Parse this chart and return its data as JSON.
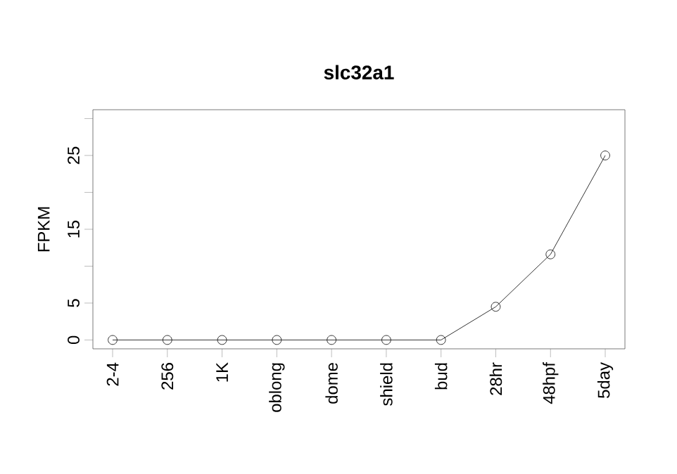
{
  "chart_data": {
    "type": "line",
    "title": "slc32a1",
    "ylabel": "FPKM",
    "categories": [
      "2-4",
      "256",
      "1K",
      "oblong",
      "dome",
      "shield",
      "bud",
      "28hr",
      "48hpf",
      "5day"
    ],
    "series": [
      {
        "color": "#000000",
        "values": [
          0,
          0,
          0,
          0,
          0,
          0,
          0,
          4.5,
          11.6,
          25.0
        ]
      }
    ],
    "ylim": [
      -1.2,
      31.2
    ],
    "yticks": [
      0,
      5,
      {
        "value": 10,
        "label": null
      },
      15,
      {
        "value": 20,
        "label": null
      },
      25,
      {
        "value": 30,
        "label": null
      }
    ],
    "marker": "circle",
    "line_style": "solid",
    "grid": false
  }
}
